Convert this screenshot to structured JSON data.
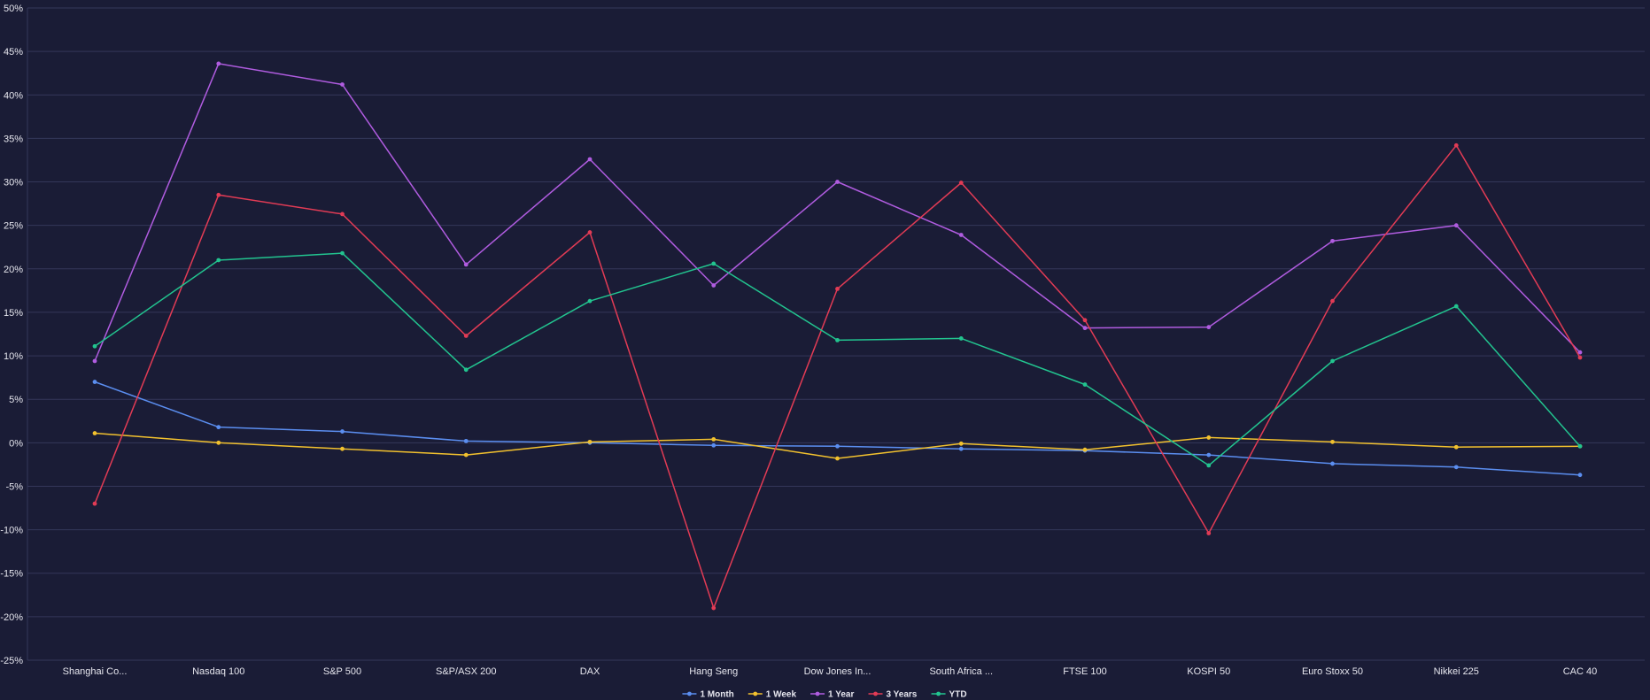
{
  "chart_data": {
    "type": "line",
    "categories": [
      "Shanghai Co...",
      "Nasdaq 100",
      "S&P 500",
      "S&P/ASX 200",
      "DAX",
      "Hang Seng",
      "Dow Jones In...",
      "South Africa ...",
      "FTSE 100",
      "KOSPI 50",
      "Euro Stoxx 50",
      "Nikkei 225",
      "CAC 40"
    ],
    "y_ticks": [
      "50%",
      "45%",
      "40%",
      "35%",
      "30%",
      "25%",
      "20%",
      "15%",
      "10%",
      "5%",
      "0%",
      "-5%",
      "-10%",
      "-15%",
      "-20%",
      "-25%"
    ],
    "ylim": [
      -25,
      50
    ],
    "grid": true,
    "legend_position": "bottom-center",
    "series": [
      {
        "name": "1 Month",
        "color": "#5b8ef0",
        "values": [
          7.0,
          1.8,
          1.3,
          0.2,
          0.0,
          -0.3,
          -0.4,
          -0.7,
          -0.9,
          -1.4,
          -2.4,
          -2.8,
          -3.7
        ]
      },
      {
        "name": "1 Week",
        "color": "#f2c12e",
        "values": [
          1.1,
          0.0,
          -0.7,
          -1.4,
          0.1,
          0.4,
          -1.8,
          -0.1,
          -0.8,
          0.6,
          0.1,
          -0.5,
          -0.4
        ]
      },
      {
        "name": "1 Year",
        "color": "#b05ce0",
        "values": [
          9.4,
          43.6,
          41.2,
          20.5,
          32.6,
          18.1,
          30.0,
          23.9,
          13.2,
          13.3,
          23.2,
          25.0,
          10.4
        ]
      },
      {
        "name": "3 Years",
        "color": "#e23b55",
        "values": [
          -7.0,
          28.5,
          26.3,
          12.3,
          24.2,
          -19.0,
          17.7,
          29.9,
          14.1,
          -10.4,
          16.3,
          34.2,
          9.8
        ]
      },
      {
        "name": "YTD",
        "color": "#22c48f",
        "values": [
          11.1,
          21.0,
          21.8,
          8.4,
          16.3,
          20.6,
          11.8,
          12.0,
          6.7,
          -2.6,
          9.4,
          15.7,
          -0.4
        ]
      }
    ]
  }
}
